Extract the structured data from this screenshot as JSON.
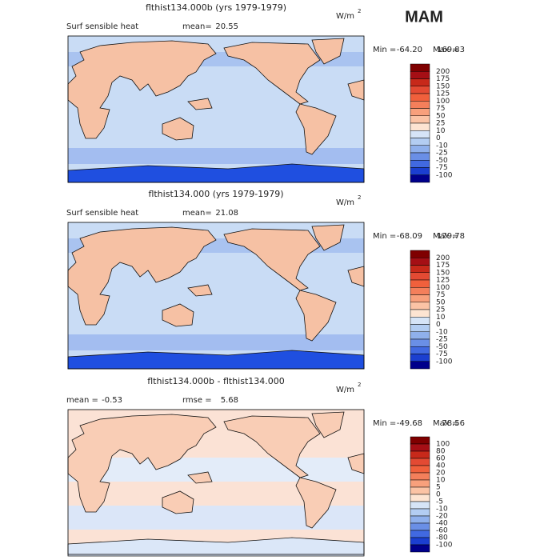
{
  "season": "MAM",
  "colorbar_colors": [
    "#7f0000",
    "#a50f15",
    "#c7291a",
    "#e34a33",
    "#f0603c",
    "#f47f5b",
    "#f8a07c",
    "#fbc3a5",
    "#fde4d2",
    "#d6e4f7",
    "#b3cdf2",
    "#8fb0ec",
    "#6a8fe6",
    "#4169e1",
    "#1b3fd0",
    "#00008b"
  ],
  "panels": [
    {
      "title": "flthist134.000b (yrs 1979-1979)",
      "variable": "Surf sensible heat",
      "stats": [
        {
          "label": "mean=",
          "value": "20.55"
        }
      ],
      "units": "W/m",
      "units_power": "2",
      "min_label": "Min =",
      "min": "-64.20",
      "max_label": "Max =",
      "max": "169.83",
      "colorbar_labels": [
        "200",
        "175",
        "150",
        "125",
        "100",
        "75",
        "50",
        "25",
        "10",
        "0",
        "-10",
        "-25",
        "-50",
        "-75",
        "-100"
      ]
    },
    {
      "title": "flthist134.000 (yrs 1979-1979)",
      "variable": "Surf sensible heat",
      "stats": [
        {
          "label": "mean=",
          "value": "21.08"
        }
      ],
      "units": "W/m",
      "units_power": "2",
      "min_label": "Min =",
      "min": "-68.09",
      "max_label": "Max =",
      "max": "179.78",
      "colorbar_labels": [
        "200",
        "175",
        "150",
        "125",
        "100",
        "75",
        "50",
        "25",
        "10",
        "0",
        "-10",
        "-25",
        "-50",
        "-75",
        "-100"
      ]
    },
    {
      "title": "flthist134.000b - flthist134.000",
      "variable": null,
      "stats": [
        {
          "label": "mean =",
          "value": "-0.53"
        },
        {
          "label": "rmse =",
          "value": "5.68"
        }
      ],
      "units": "W/m",
      "units_power": "2",
      "min_label": "Min =",
      "min": "-49.68",
      "max_label": "Max =",
      "max": "78.56",
      "colorbar_labels": [
        "100",
        "80",
        "60",
        "40",
        "20",
        "10",
        "5",
        "0",
        "-5",
        "-10",
        "-20",
        "-40",
        "-60",
        "-80",
        "-100"
      ]
    }
  ]
}
